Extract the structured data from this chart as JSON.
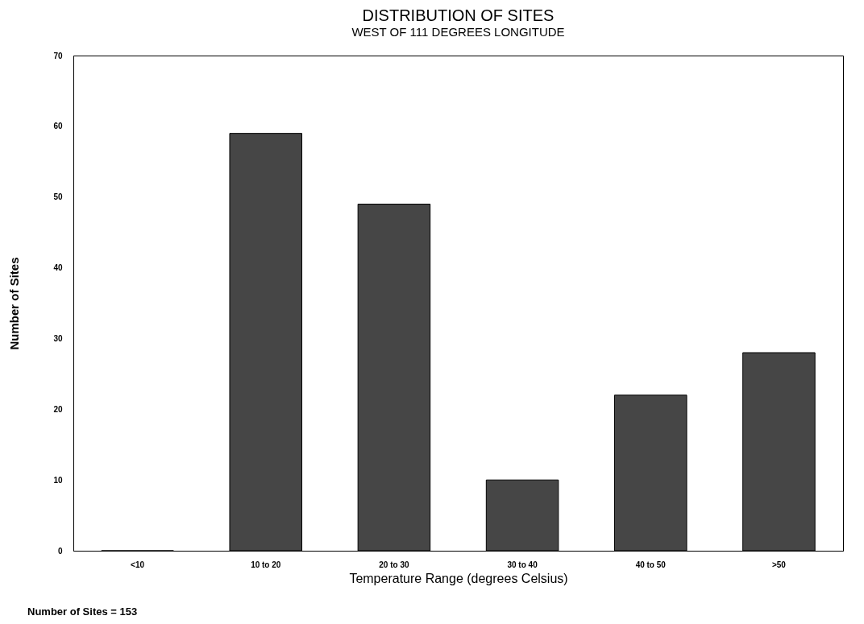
{
  "chart_data": {
    "type": "bar",
    "title": "DISTRIBUTION OF SITES",
    "subtitle": "WEST OF 111 DEGREES LONGITUDE",
    "xlabel": "Temperature Range (degrees Celsius)",
    "ylabel": "Number of Sites",
    "categories": [
      "<10",
      "10 to 20",
      "20 to 30",
      "30 to 40",
      "40 to 50",
      ">50"
    ],
    "values": [
      0,
      59,
      49,
      10,
      22,
      28
    ],
    "color": "#464646",
    "ylim": [
      0,
      70
    ],
    "yticks": [
      0,
      10,
      20,
      30,
      40,
      50,
      60,
      70
    ],
    "grid": false,
    "annotations": [
      "Number of Sites = 153"
    ]
  }
}
